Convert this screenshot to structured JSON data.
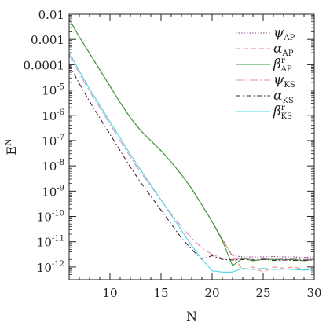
{
  "chart_data": {
    "type": "line",
    "xlabel": "N",
    "ylabel": "E",
    "ylabel_sup": "N",
    "xlim": [
      6,
      30
    ],
    "ylim_log10": [
      -12.5,
      -2
    ],
    "yscale": "log",
    "x_ticks": [
      10,
      15,
      20,
      25,
      30
    ],
    "y_ticks": [
      {
        "exp": -2,
        "label": "0.01",
        "sup": ""
      },
      {
        "exp": -3,
        "label": "0.001",
        "sup": ""
      },
      {
        "exp": -4,
        "label": "0.0001",
        "sup": ""
      },
      {
        "exp": -5,
        "label": "10",
        "sup": "-5"
      },
      {
        "exp": -6,
        "label": "10",
        "sup": "-6"
      },
      {
        "exp": -7,
        "label": "10",
        "sup": "-7"
      },
      {
        "exp": -8,
        "label": "10",
        "sup": "-8"
      },
      {
        "exp": -9,
        "label": "10",
        "sup": "-9"
      },
      {
        "exp": -10,
        "label": "10",
        "sup": "-10"
      },
      {
        "exp": -11,
        "label": "10",
        "sup": "-11"
      },
      {
        "exp": -12,
        "label": "10",
        "sup": "-12"
      }
    ],
    "legend_position": "top-right",
    "series": [
      {
        "name": "ψ",
        "sub": "AP",
        "sup": "",
        "color": "#7b3b7b",
        "dash": "1.5,2",
        "x": [
          6,
          7,
          8,
          9,
          10,
          11,
          12,
          13,
          14,
          15,
          16,
          17,
          18,
          19,
          20,
          21,
          22,
          23,
          24,
          25,
          26,
          27,
          28,
          29,
          30
        ],
        "y": [
          -2.2,
          -2.9,
          -3.55,
          -4.2,
          -4.85,
          -5.5,
          -6.1,
          -6.6,
          -7.0,
          -7.4,
          -7.85,
          -8.35,
          -8.9,
          -9.55,
          -10.2,
          -10.9,
          -11.55,
          -11.6,
          -11.6,
          -11.6,
          -11.58,
          -11.6,
          -11.6,
          -11.62,
          -11.6
        ]
      },
      {
        "name": "α",
        "sub": "AP",
        "sup": "",
        "color": "#e88a7a",
        "dash": "6,4",
        "x": [
          6,
          7,
          8,
          9,
          10,
          11,
          12,
          13,
          14,
          15,
          16,
          17,
          18,
          19,
          20,
          21,
          22,
          23,
          24,
          25,
          26,
          27,
          28,
          29,
          30
        ],
        "y": [
          -2.2,
          -2.9,
          -3.55,
          -4.2,
          -4.85,
          -5.5,
          -6.1,
          -6.6,
          -7.0,
          -7.4,
          -7.85,
          -8.35,
          -8.9,
          -9.55,
          -10.2,
          -10.9,
          -11.6,
          -12.1,
          -12.0,
          -12.2,
          -12.0,
          -12.05,
          -12.0,
          -12.1,
          -12.05
        ]
      },
      {
        "name": "β",
        "sub": "AP",
        "sup": "r",
        "color": "#2ca02c",
        "dash": "",
        "x": [
          6,
          7,
          8,
          9,
          10,
          11,
          12,
          13,
          14,
          15,
          16,
          17,
          18,
          19,
          20,
          21,
          22,
          23,
          24,
          25,
          26,
          27,
          28,
          29,
          30
        ],
        "y": [
          -2.2,
          -2.9,
          -3.55,
          -4.2,
          -4.85,
          -5.5,
          -6.1,
          -6.6,
          -7.0,
          -7.4,
          -7.85,
          -8.35,
          -8.9,
          -9.55,
          -10.2,
          -10.95,
          -11.95,
          -11.65,
          -11.75,
          -11.7,
          -11.7,
          -11.72,
          -11.7,
          -11.75,
          -11.7
        ]
      },
      {
        "name": "ψ",
        "sub": "KS",
        "sup": "",
        "color": "#d58ec4",
        "dash": "10,3,2,3",
        "x": [
          6,
          7,
          8,
          9,
          10,
          11,
          12,
          13,
          14,
          15,
          16,
          17,
          18,
          19,
          20,
          21,
          22,
          23,
          24,
          25,
          26,
          27,
          28,
          29,
          30
        ],
        "y": [
          -3.6,
          -4.35,
          -5.05,
          -5.7,
          -6.35,
          -7.0,
          -7.65,
          -8.25,
          -8.8,
          -9.35,
          -9.9,
          -10.4,
          -10.85,
          -11.25,
          -11.5,
          -11.65,
          -11.65,
          -11.7,
          -11.65,
          -11.68,
          -11.65,
          -11.68,
          -11.66,
          -11.7,
          -11.68
        ]
      },
      {
        "name": "α",
        "sub": "KS",
        "sup": "",
        "color": "#4b1f3b",
        "dash": "6,3,1.5,3",
        "x": [
          6,
          7,
          8,
          9,
          10,
          11,
          12,
          13,
          14,
          15,
          16,
          17,
          18,
          19,
          20,
          21,
          22,
          23,
          24,
          25,
          26,
          27,
          28,
          29,
          30
        ],
        "y": [
          -4.0,
          -4.75,
          -5.45,
          -6.1,
          -6.75,
          -7.4,
          -8.05,
          -8.65,
          -9.2,
          -9.75,
          -10.3,
          -10.85,
          -11.3,
          -11.7,
          -11.55,
          -11.7,
          -11.72,
          -11.7,
          -11.72,
          -11.7,
          -11.74,
          -11.72,
          -11.74,
          -11.73,
          -11.72
        ]
      },
      {
        "name": "β",
        "sub": "KS",
        "sup": "r",
        "color": "#4dd8e6",
        "dash": "",
        "x": [
          6,
          7,
          8,
          9,
          10,
          11,
          12,
          13,
          14,
          15,
          16,
          17,
          18,
          19,
          20,
          21,
          22,
          23,
          24,
          25,
          26,
          27,
          28,
          29,
          30
        ],
        "y": [
          -3.5,
          -4.25,
          -4.95,
          -5.6,
          -6.25,
          -6.9,
          -7.55,
          -8.15,
          -8.75,
          -9.35,
          -9.95,
          -10.55,
          -11.15,
          -11.7,
          -12.15,
          -12.2,
          -12.2,
          -12.05,
          -12.1,
          -12.05,
          -12.1,
          -12.08,
          -12.1,
          -12.12,
          -12.1
        ]
      }
    ]
  }
}
